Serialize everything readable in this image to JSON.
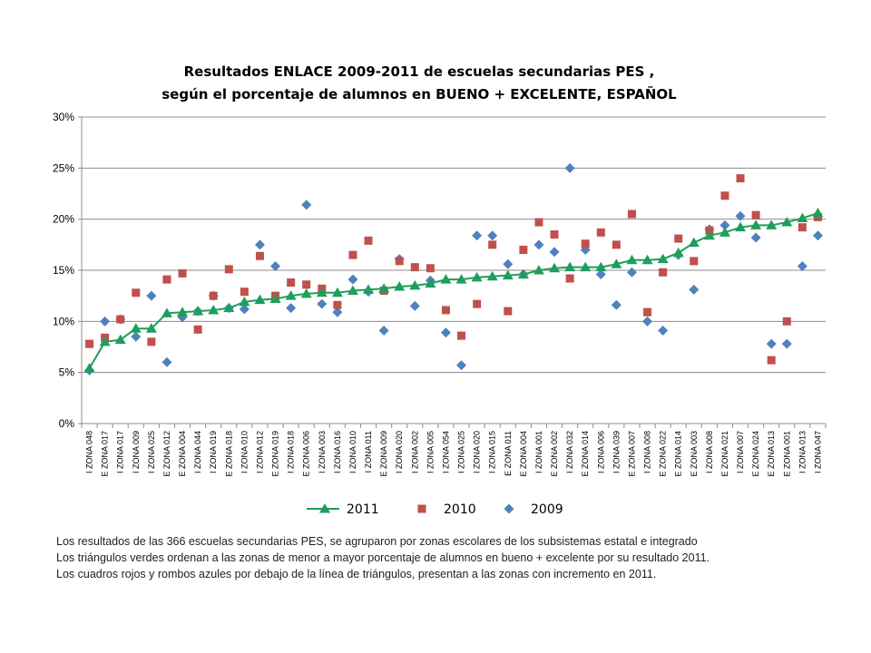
{
  "chart_data": {
    "type": "line",
    "title": [
      "Resultados ENLACE 2009-2011 de escuelas secundarias PES ,",
      "según el porcentaje  de alumnos en BUENO + EXCELENTE, ESPAÑOL"
    ],
    "xlabel": "",
    "ylabel": "",
    "ylim": [
      0,
      30
    ],
    "yticks": [
      "0%",
      "5%",
      "10%",
      "15%",
      "20%",
      "25%",
      "30%"
    ],
    "grid": true,
    "legend_position": "bottom",
    "categories": [
      "I ZONA 048",
      "E ZONA 017",
      "I ZONA 017",
      "I ZONA 009",
      "I ZONA 025",
      "E ZONA 012",
      "E ZONA 004",
      "I ZONA 044",
      "I ZONA 019",
      "E ZONA 018",
      "I ZONA 010",
      "I ZONA 012",
      "E ZONA 019",
      "I ZONA 018",
      "E ZONA 006",
      "I ZONA 003",
      "I ZONA 016",
      "I ZONA 010",
      "I ZONA 011",
      "E ZONA 009",
      "I ZONA 020",
      "I ZONA 002",
      "I ZONA 005",
      "I ZONA 054",
      "I ZONA 025",
      "I ZONA 020",
      "I ZONA 015",
      "E ZONA 011",
      "E ZONA 004",
      "I ZONA 001",
      "E ZONA 002",
      "I ZONA 032",
      "E ZONA 014",
      "I ZONA 006",
      "I ZONA 039",
      "E ZONA 007",
      "I ZONA 008",
      "E ZONA 022",
      "E ZONA 014",
      "E ZONA 003",
      "I ZONA 008",
      "E ZONA 021",
      "I ZONA 007",
      "E ZONA 024",
      "E ZONA 013",
      "E ZONA 001",
      "I ZONA 013",
      "I ZONA 047"
    ],
    "series": [
      {
        "name": "2011",
        "marker": "triangle",
        "color": "#1e9e5a",
        "line": true,
        "values": [
          5.4,
          8.0,
          8.2,
          9.3,
          9.3,
          10.8,
          10.9,
          11.0,
          11.1,
          11.3,
          11.9,
          12.1,
          12.2,
          12.5,
          12.7,
          12.8,
          12.8,
          13.0,
          13.1,
          13.2,
          13.4,
          13.5,
          13.7,
          14.1,
          14.1,
          14.3,
          14.4,
          14.5,
          14.6,
          15.0,
          15.2,
          15.3,
          15.3,
          15.3,
          15.6,
          16.0,
          16.0,
          16.1,
          16.7,
          17.7,
          18.4,
          18.7,
          19.2,
          19.4,
          19.4,
          19.7,
          20.1,
          20.6
        ]
      },
      {
        "name": "2010",
        "marker": "square",
        "color": "#c0504d",
        "line": false,
        "values": [
          7.8,
          8.4,
          10.2,
          12.8,
          8.0,
          14.1,
          14.7,
          9.2,
          12.5,
          15.1,
          12.9,
          16.4,
          12.5,
          13.8,
          13.6,
          13.2,
          11.6,
          16.5,
          17.9,
          13.0,
          15.9,
          15.3,
          15.2,
          11.1,
          8.6,
          11.7,
          17.5,
          11.0,
          17.0,
          19.7,
          18.5,
          14.2,
          17.6,
          18.7,
          17.5,
          20.5,
          10.9,
          14.8,
          18.1,
          15.9,
          18.9,
          22.3,
          24.0,
          20.4,
          6.2,
          10.0,
          19.2,
          20.2
        ]
      },
      {
        "name": "2009",
        "marker": "diamond",
        "color": "#4f81bd",
        "line": false,
        "values": [
          5.2,
          10.0,
          10.2,
          8.5,
          12.5,
          6.0,
          10.4,
          11.0,
          12.5,
          11.3,
          11.2,
          17.5,
          15.4,
          11.3,
          21.4,
          11.7,
          10.9,
          14.1,
          12.9,
          9.1,
          16.1,
          11.5,
          14.0,
          8.9,
          5.7,
          18.4,
          18.4,
          15.6,
          14.6,
          17.5,
          16.8,
          25.0,
          17.0,
          14.6,
          11.6,
          14.8,
          10.0,
          9.1,
          16.5,
          13.1,
          19.0,
          19.4,
          20.3,
          18.2,
          7.8,
          7.8,
          15.4,
          18.4
        ]
      }
    ]
  },
  "notes": [
    "Los resultados  de las 366  escuelas secundarias   PES, se agruparon por zonas escolares de los subsistemas  estatal e integrado",
    "Los triángulos  verdes ordenan a las zonas de menor a mayor porcentaje de alumnos en bueno + excelente por su resultado  2011.",
    "Los cuadros rojos y rombos azules por debajo de la línea de triángulos,  presentan  a las zonas con incremento  en 2011."
  ]
}
